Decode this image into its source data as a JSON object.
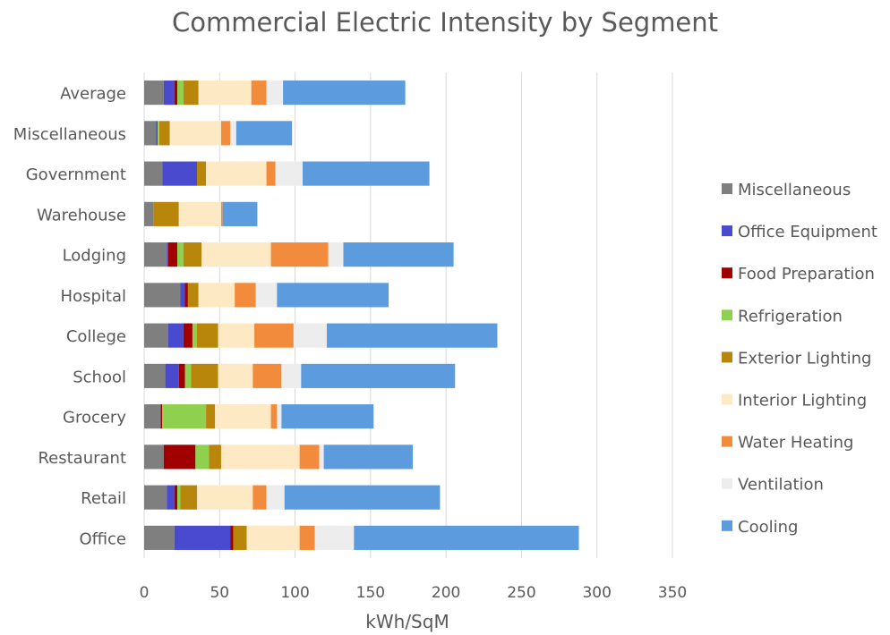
{
  "chart_data": {
    "type": "bar",
    "orientation": "horizontal",
    "stacked": true,
    "title": "Commercial Electric Intensity by Segment",
    "xlabel": "kWh/SqM",
    "ylabel": "",
    "xlim": [
      0,
      350
    ],
    "xticks": [
      0,
      50,
      100,
      150,
      200,
      250,
      300,
      350
    ],
    "grid": true,
    "legend_position": "right",
    "categories": [
      "Average",
      "Miscellaneous",
      "Government",
      "Warehouse",
      "Lodging",
      "Hospital",
      "College",
      "School",
      "Grocery",
      "Restaurant",
      "Retail",
      "Office"
    ],
    "series": [
      {
        "name": "Miscellaneous",
        "color": "#7f7f7f",
        "values": [
          13,
          8,
          12,
          6,
          15,
          24,
          16,
          14,
          11,
          13,
          15,
          20
        ]
      },
      {
        "name": "Office Equipment",
        "color": "#4a4acf",
        "values": [
          7,
          1,
          23,
          0,
          1,
          3,
          10,
          9,
          0,
          0,
          5,
          37
        ]
      },
      {
        "name": "Food Preparation",
        "color": "#a00000",
        "values": [
          2,
          0,
          0,
          0,
          6,
          2,
          6,
          4,
          1,
          21,
          2,
          2
        ]
      },
      {
        "name": "Refrigeration",
        "color": "#8fd14f",
        "values": [
          4,
          1,
          0,
          0,
          4,
          0,
          3,
          4,
          29,
          9,
          2,
          0
        ]
      },
      {
        "name": "Exterior Lighting",
        "color": "#b8860b",
        "values": [
          10,
          7,
          6,
          17,
          12,
          7,
          14,
          18,
          6,
          8,
          11,
          9
        ]
      },
      {
        "name": "Interior Lighting",
        "color": "#fde9c4",
        "values": [
          35,
          34,
          40,
          28,
          46,
          24,
          24,
          23,
          37,
          52,
          37,
          35
        ]
      },
      {
        "name": "Water Heating",
        "color": "#f28c3c",
        "values": [
          10,
          6,
          6,
          1,
          38,
          14,
          26,
          19,
          4,
          13,
          9,
          10
        ]
      },
      {
        "name": "Ventilation",
        "color": "#ededed",
        "values": [
          11,
          4,
          18,
          0,
          10,
          14,
          22,
          13,
          3,
          3,
          12,
          26
        ]
      },
      {
        "name": "Cooling",
        "color": "#5b9bde",
        "values": [
          81,
          37,
          84,
          23,
          73,
          74,
          113,
          102,
          61,
          59,
          103,
          149
        ]
      }
    ]
  }
}
